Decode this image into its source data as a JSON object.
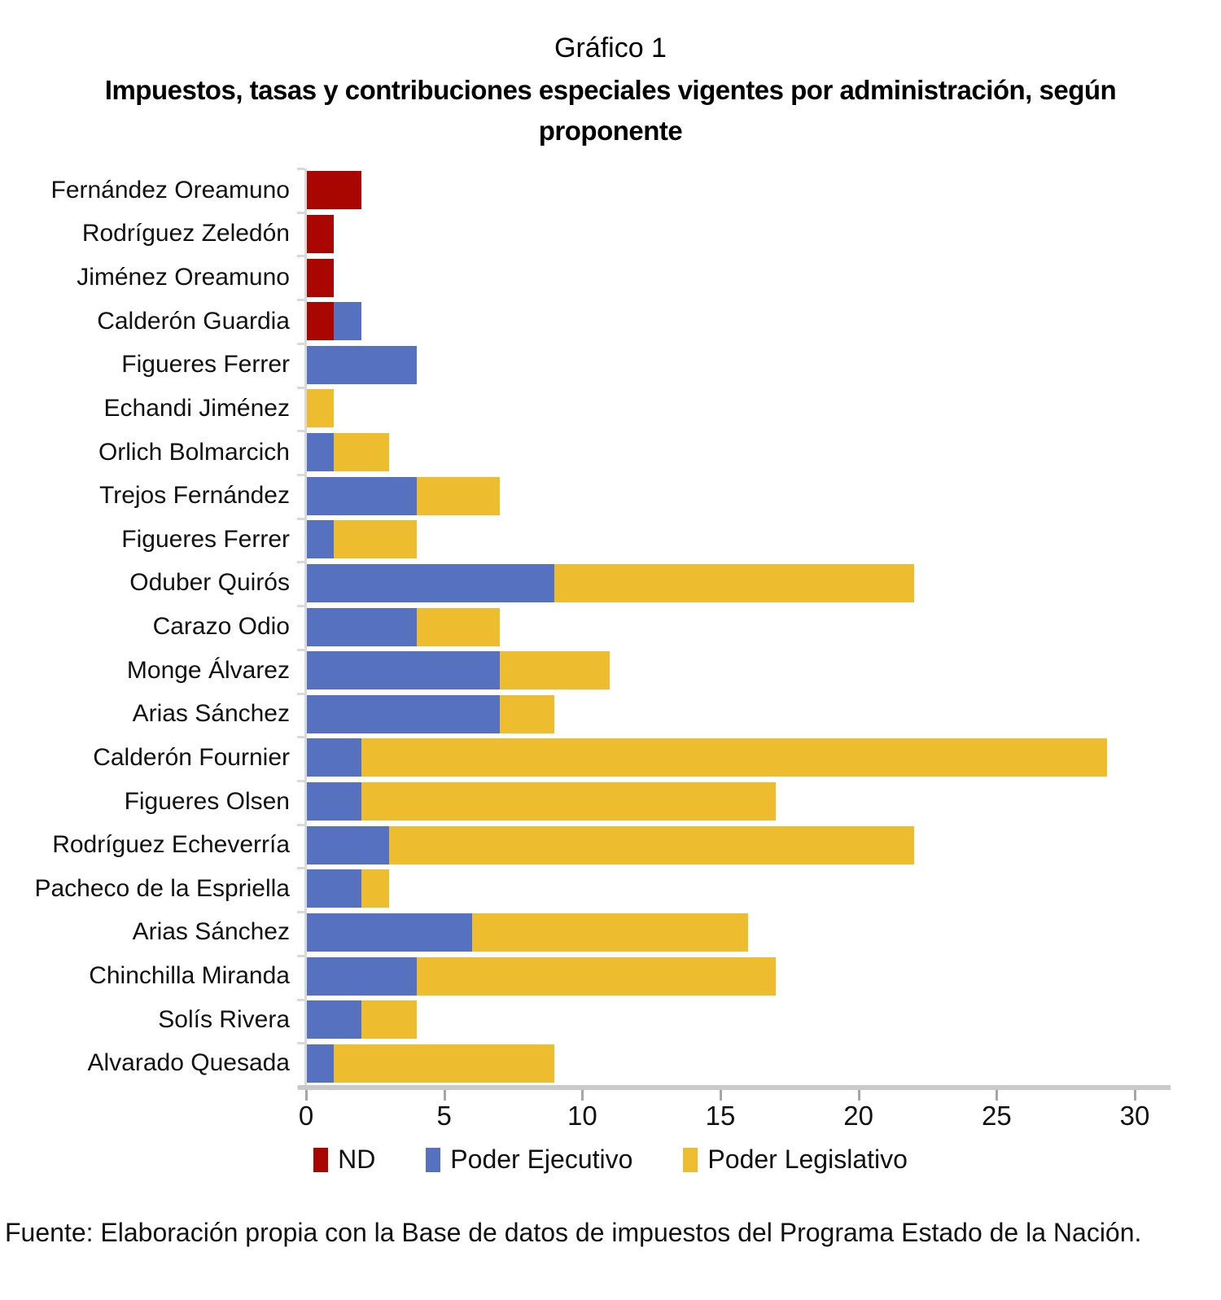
{
  "title": "Gráfico 1",
  "subtitle": "Impuestos, tasas y contribuciones especiales vigentes por administración, según proponente",
  "source": "Fuente: Elaboración propia con la Base de datos de impuestos del Programa Estado de la Nación.",
  "chart_data": {
    "type": "bar",
    "orientation": "horizontal",
    "stacked": true,
    "grid": false,
    "legend_position": "bottom",
    "xlim": [
      0,
      30
    ],
    "xticks": [
      0,
      5,
      10,
      15,
      20,
      25,
      30
    ],
    "categories": [
      "Fernández Oreamuno",
      "Rodríguez Zeledón",
      "Jiménez Oreamuno",
      "Calderón Guardia",
      "Figueres Ferrer",
      "Echandi Jiménez",
      "Orlich Bolmarcich",
      "Trejos Fernández",
      "Figueres Ferrer",
      "Oduber Quirós",
      "Carazo Odio",
      "Monge Álvarez",
      "Arias Sánchez",
      "Calderón Fournier",
      "Figueres Olsen",
      "Rodríguez Echeverría",
      "Pacheco de la Espriella",
      "Arias Sánchez",
      "Chinchilla Miranda",
      "Solís Rivera",
      "Alvarado Quesada"
    ],
    "series": [
      {
        "name": "ND",
        "key": "nd",
        "color": "#A90601",
        "values": [
          2,
          1,
          1,
          1,
          0,
          0,
          0,
          0,
          0,
          0,
          0,
          0,
          0,
          0,
          0,
          0,
          0,
          0,
          0,
          0,
          0
        ]
      },
      {
        "name": "Poder Ejecutivo",
        "key": "ejecutivo",
        "color": "#5571C0",
        "values": [
          0,
          0,
          0,
          1,
          4,
          0,
          1,
          4,
          1,
          9,
          4,
          7,
          7,
          2,
          2,
          3,
          2,
          6,
          4,
          2,
          1
        ]
      },
      {
        "name": "Poder Legislativo",
        "key": "legislativo",
        "color": "#EDBD2F",
        "values": [
          0,
          0,
          0,
          0,
          0,
          1,
          2,
          3,
          3,
          13,
          3,
          4,
          2,
          27,
          15,
          19,
          1,
          10,
          13,
          2,
          8
        ]
      }
    ]
  }
}
